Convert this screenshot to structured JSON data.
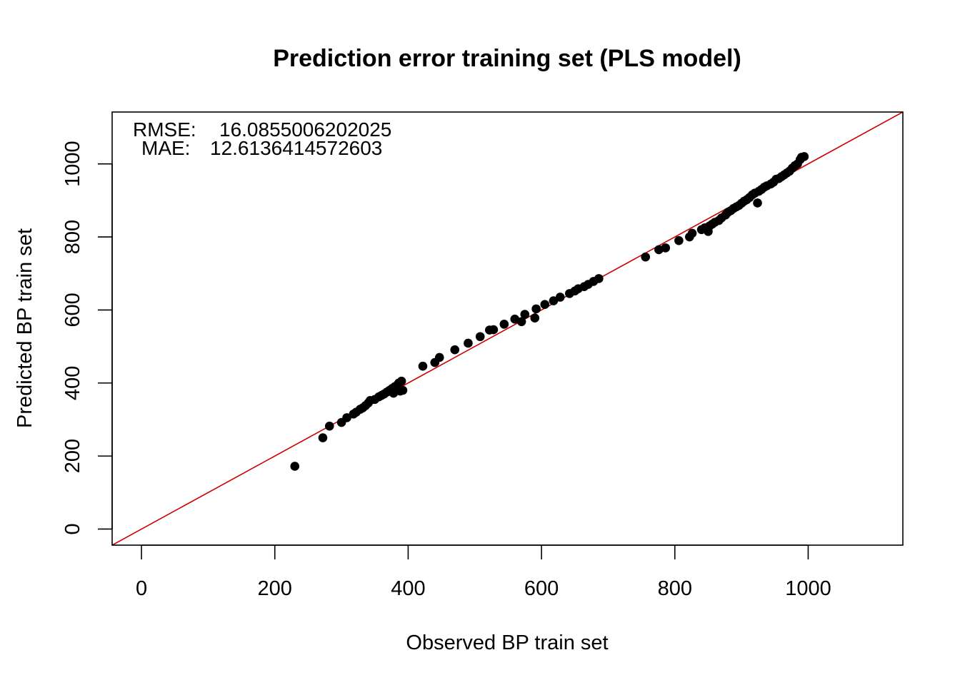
{
  "chart_data": {
    "type": "scatter",
    "title": "Prediction error training set (PLS model)",
    "xlabel": "Observed BP train set",
    "ylabel": "Predicted BP train set",
    "xlim": [
      -44,
      1142
    ],
    "ylim": [
      -44,
      1142
    ],
    "x_ticks": [
      0,
      200,
      400,
      600,
      800,
      1000
    ],
    "y_ticks": [
      0,
      200,
      400,
      600,
      800,
      1000
    ],
    "x_tick_labels": [
      "0",
      "200",
      "400",
      "600",
      "800",
      "1000"
    ],
    "y_tick_labels": [
      "0",
      "200",
      "400",
      "600",
      "800",
      "1000"
    ],
    "grid": false,
    "legend": "none",
    "point_color": "#000000",
    "reference_line": {
      "type": "identity",
      "slope": 1,
      "intercept": 0,
      "color": "#cc0000"
    },
    "annotations": [
      {
        "label": "RMSE:",
        "value": "16.0855006202025"
      },
      {
        "label": "MAE:",
        "value": "12.6136414572603"
      }
    ],
    "points": [
      [
        230,
        172
      ],
      [
        272,
        250
      ],
      [
        282,
        282
      ],
      [
        300,
        292
      ],
      [
        308,
        305
      ],
      [
        318,
        315
      ],
      [
        322,
        320
      ],
      [
        328,
        328
      ],
      [
        332,
        332
      ],
      [
        336,
        338
      ],
      [
        340,
        345
      ],
      [
        343,
        352
      ],
      [
        350,
        355
      ],
      [
        356,
        362
      ],
      [
        360,
        366
      ],
      [
        364,
        370
      ],
      [
        368,
        375
      ],
      [
        372,
        380
      ],
      [
        376,
        385
      ],
      [
        378,
        372
      ],
      [
        380,
        390
      ],
      [
        384,
        395
      ],
      [
        386,
        400
      ],
      [
        388,
        378
      ],
      [
        390,
        405
      ],
      [
        392,
        380
      ],
      [
        422,
        446
      ],
      [
        440,
        456
      ],
      [
        447,
        470
      ],
      [
        470,
        491
      ],
      [
        490,
        509
      ],
      [
        508,
        527
      ],
      [
        522,
        545
      ],
      [
        528,
        546
      ],
      [
        544,
        561
      ],
      [
        560,
        575
      ],
      [
        570,
        568
      ],
      [
        575,
        588
      ],
      [
        590,
        578
      ],
      [
        592,
        603
      ],
      [
        605,
        615
      ],
      [
        618,
        625
      ],
      [
        628,
        635
      ],
      [
        642,
        645
      ],
      [
        650,
        652
      ],
      [
        655,
        658
      ],
      [
        664,
        664
      ],
      [
        670,
        670
      ],
      [
        678,
        678
      ],
      [
        686,
        686
      ],
      [
        756,
        745
      ],
      [
        776,
        765
      ],
      [
        786,
        770
      ],
      [
        806,
        790
      ],
      [
        822,
        800
      ],
      [
        826,
        810
      ],
      [
        840,
        820
      ],
      [
        845,
        825
      ],
      [
        850,
        815
      ],
      [
        852,
        830
      ],
      [
        856,
        835
      ],
      [
        860,
        840
      ],
      [
        866,
        845
      ],
      [
        870,
        852
      ],
      [
        876,
        860
      ],
      [
        880,
        868
      ],
      [
        884,
        872
      ],
      [
        888,
        878
      ],
      [
        892,
        882
      ],
      [
        896,
        886
      ],
      [
        900,
        892
      ],
      [
        904,
        898
      ],
      [
        908,
        902
      ],
      [
        912,
        908
      ],
      [
        916,
        915
      ],
      [
        920,
        920
      ],
      [
        924,
        893
      ],
      [
        926,
        925
      ],
      [
        930,
        930
      ],
      [
        934,
        936
      ],
      [
        938,
        940
      ],
      [
        944,
        945
      ],
      [
        948,
        950
      ],
      [
        952,
        958
      ],
      [
        956,
        960
      ],
      [
        960,
        965
      ],
      [
        964,
        970
      ],
      [
        968,
        975
      ],
      [
        972,
        980
      ],
      [
        976,
        988
      ],
      [
        980,
        995
      ],
      [
        984,
        1000
      ],
      [
        988,
        1012
      ],
      [
        990,
        1018
      ],
      [
        994,
        1020
      ]
    ]
  }
}
